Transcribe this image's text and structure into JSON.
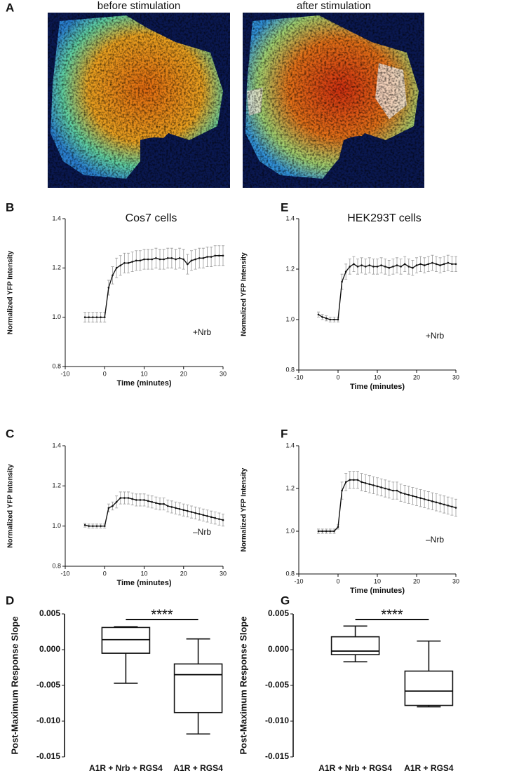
{
  "image_panel": {
    "label": "A",
    "captions": [
      "before stimulation",
      "after stimulation"
    ]
  },
  "chart_data": [
    {
      "type": "line",
      "panel": "B",
      "title": "Cos7 cells",
      "xlabel": "Time (minutes)",
      "ylabel": "Normalized YFP Intensity",
      "annotation": "+Nrb",
      "xlim": [
        -10,
        30
      ],
      "xticks": [
        -10,
        0,
        10,
        20,
        30
      ],
      "ylim": [
        0.8,
        1.4
      ],
      "yticks": [
        0.8,
        {
          "value": 1,
          "label": "1.0"
        },
        1.2,
        1.4
      ],
      "x": [
        -5,
        -4,
        -3,
        -2,
        -1,
        0,
        1,
        2,
        3,
        4,
        5,
        6,
        7,
        8,
        9,
        10,
        11,
        12,
        13,
        14,
        15,
        16,
        17,
        18,
        19,
        20,
        21,
        22,
        23,
        24,
        25,
        26,
        27,
        28,
        29,
        30
      ],
      "series": [
        {
          "color": "#111111",
          "values": [
            1.0,
            1.0,
            1.0,
            1.0,
            1.0,
            1.0,
            1.12,
            1.17,
            1.2,
            1.21,
            1.22,
            1.22,
            1.225,
            1.23,
            1.23,
            1.235,
            1.235,
            1.235,
            1.24,
            1.235,
            1.235,
            1.24,
            1.24,
            1.235,
            1.24,
            1.235,
            1.215,
            1.23,
            1.235,
            1.24,
            1.24,
            1.245,
            1.245,
            1.25,
            1.25,
            1.25
          ],
          "errors": [
            0.02,
            0.02,
            0.02,
            0.02,
            0.02,
            0.02,
            0.03,
            0.035,
            0.04,
            0.04,
            0.04,
            0.04,
            0.04,
            0.04,
            0.04,
            0.04,
            0.04,
            0.04,
            0.04,
            0.04,
            0.04,
            0.04,
            0.04,
            0.04,
            0.04,
            0.04,
            0.04,
            0.04,
            0.04,
            0.04,
            0.04,
            0.04,
            0.04,
            0.04,
            0.04,
            0.04
          ]
        }
      ]
    },
    {
      "type": "line",
      "panel": "C",
      "xlabel": "Time (minutes)",
      "ylabel": "Normalized YFP Intensity",
      "annotation": "–Nrb",
      "xlim": [
        -10,
        30
      ],
      "xticks": [
        -10,
        0,
        10,
        20,
        30
      ],
      "ylim": [
        0.8,
        1.4
      ],
      "yticks": [
        0.8,
        {
          "value": 1,
          "label": "1.0"
        },
        1.2,
        1.4
      ],
      "x": [
        -5,
        -4,
        -3,
        -2,
        -1,
        0,
        1,
        2,
        3,
        4,
        5,
        6,
        7,
        8,
        9,
        10,
        11,
        12,
        13,
        14,
        15,
        16,
        17,
        18,
        19,
        20,
        21,
        22,
        23,
        24,
        25,
        26,
        27,
        28,
        29,
        30
      ],
      "series": [
        {
          "color": "#111111",
          "values": [
            1.005,
            1.0,
            1.0,
            1.0,
            1.0,
            1.0,
            1.09,
            1.1,
            1.12,
            1.14,
            1.14,
            1.14,
            1.135,
            1.13,
            1.13,
            1.13,
            1.125,
            1.12,
            1.115,
            1.11,
            1.11,
            1.1,
            1.095,
            1.09,
            1.085,
            1.08,
            1.075,
            1.07,
            1.065,
            1.06,
            1.055,
            1.05,
            1.045,
            1.04,
            1.035,
            1.03
          ],
          "errors": [
            0.01,
            0.01,
            0.01,
            0.01,
            0.01,
            0.01,
            0.02,
            0.02,
            0.03,
            0.03,
            0.03,
            0.03,
            0.03,
            0.03,
            0.03,
            0.03,
            0.03,
            0.03,
            0.03,
            0.03,
            0.03,
            0.03,
            0.03,
            0.03,
            0.03,
            0.03,
            0.03,
            0.03,
            0.03,
            0.03,
            0.03,
            0.03,
            0.03,
            0.03,
            0.03,
            0.03
          ]
        }
      ]
    },
    {
      "type": "box",
      "panel": "D",
      "ylabel": "Post-Maximum Response Slope",
      "annotation": "****",
      "ylim": [
        -0.015,
        0.005
      ],
      "yticks": [
        -0.015,
        {
          "value": -0.01,
          "label": "-0.010"
        },
        -0.005,
        {
          "value": 0,
          "label": "0.000"
        },
        0.005
      ],
      "categories": [
        "A1R + Nrb + RGS4",
        "A1R + RGS4"
      ],
      "boxes": [
        {
          "min": -0.0047,
          "q1": -0.0005,
          "median": 0.0014,
          "q3": 0.0031,
          "max": 0.0032
        },
        {
          "min": -0.0118,
          "q1": -0.0088,
          "median": -0.0035,
          "q3": -0.002,
          "max": 0.0015
        }
      ]
    },
    {
      "type": "line",
      "panel": "E",
      "title": "HEK293T cells",
      "xlabel": "Time (minutes)",
      "ylabel": "Normalized YFP Intensity",
      "annotation": "+Nrb",
      "xlim": [
        -10,
        30
      ],
      "xticks": [
        -10,
        0,
        10,
        20,
        30
      ],
      "ylim": [
        0.8,
        1.4
      ],
      "yticks": [
        0.8,
        {
          "value": 1,
          "label": "1.0"
        },
        1.2,
        1.4
      ],
      "x": [
        -5,
        -4,
        -3,
        -2,
        -1,
        0,
        1,
        2,
        3,
        4,
        5,
        6,
        7,
        8,
        9,
        10,
        11,
        12,
        13,
        14,
        15,
        16,
        17,
        18,
        19,
        20,
        21,
        22,
        23,
        24,
        25,
        26,
        27,
        28,
        29,
        30
      ],
      "series": [
        {
          "color": "#111111",
          "values": [
            1.02,
            1.01,
            1.005,
            1.0,
            1.0,
            1.0,
            1.15,
            1.19,
            1.21,
            1.22,
            1.21,
            1.215,
            1.21,
            1.215,
            1.21,
            1.21,
            1.215,
            1.21,
            1.205,
            1.21,
            1.215,
            1.21,
            1.22,
            1.21,
            1.205,
            1.215,
            1.22,
            1.215,
            1.22,
            1.225,
            1.22,
            1.215,
            1.22,
            1.225,
            1.22,
            1.22
          ],
          "errors": [
            0.01,
            0.01,
            0.01,
            0.01,
            0.01,
            0.01,
            0.03,
            0.03,
            0.03,
            0.03,
            0.03,
            0.03,
            0.03,
            0.03,
            0.03,
            0.03,
            0.03,
            0.03,
            0.03,
            0.03,
            0.03,
            0.03,
            0.03,
            0.03,
            0.03,
            0.03,
            0.03,
            0.03,
            0.03,
            0.03,
            0.03,
            0.03,
            0.03,
            0.03,
            0.03,
            0.03
          ]
        }
      ]
    },
    {
      "type": "line",
      "panel": "F",
      "xlabel": "Time (minutes)",
      "ylabel": "Normalized YFP Intensity",
      "annotation": "–Nrb",
      "xlim": [
        -10,
        30
      ],
      "xticks": [
        -10,
        0,
        10,
        20,
        30
      ],
      "ylim": [
        0.8,
        1.4
      ],
      "yticks": [
        0.8,
        {
          "value": 1,
          "label": "1.0"
        },
        1.2,
        1.4
      ],
      "x": [
        -5,
        -4,
        -3,
        -2,
        -1,
        0,
        1,
        2,
        3,
        4,
        5,
        6,
        7,
        8,
        9,
        10,
        11,
        12,
        13,
        14,
        15,
        16,
        17,
        18,
        19,
        20,
        21,
        22,
        23,
        24,
        25,
        26,
        27,
        28,
        29,
        30
      ],
      "series": [
        {
          "color": "#111111",
          "values": [
            1.0,
            1.0,
            1.0,
            1.0,
            1.0,
            1.02,
            1.19,
            1.23,
            1.24,
            1.24,
            1.24,
            1.23,
            1.225,
            1.22,
            1.215,
            1.21,
            1.205,
            1.2,
            1.195,
            1.19,
            1.19,
            1.18,
            1.175,
            1.17,
            1.165,
            1.16,
            1.155,
            1.15,
            1.145,
            1.14,
            1.135,
            1.13,
            1.125,
            1.12,
            1.115,
            1.11
          ],
          "errors": [
            0.01,
            0.01,
            0.01,
            0.01,
            0.01,
            0.01,
            0.04,
            0.04,
            0.04,
            0.04,
            0.04,
            0.04,
            0.04,
            0.04,
            0.04,
            0.04,
            0.04,
            0.04,
            0.04,
            0.04,
            0.04,
            0.04,
            0.04,
            0.04,
            0.04,
            0.04,
            0.04,
            0.04,
            0.04,
            0.04,
            0.04,
            0.04,
            0.04,
            0.04,
            0.04,
            0.04
          ]
        }
      ]
    },
    {
      "type": "box",
      "panel": "G",
      "ylabel": "Post-Maximum Response Slope",
      "annotation": "****",
      "ylim": [
        -0.015,
        0.005
      ],
      "yticks": [
        -0.015,
        {
          "value": -0.01,
          "label": "-0.010"
        },
        -0.005,
        {
          "value": 0,
          "label": "0.000"
        },
        0.005
      ],
      "categories": [
        "A1R + Nrb + RGS4",
        "A1R + RGS4"
      ],
      "boxes": [
        {
          "min": -0.0017,
          "q1": -0.0007,
          "median": -0.0002,
          "q3": 0.0018,
          "max": 0.0033
        },
        {
          "min": -0.008,
          "q1": -0.0078,
          "median": -0.0058,
          "q3": -0.003,
          "max": 0.0012
        }
      ]
    }
  ]
}
